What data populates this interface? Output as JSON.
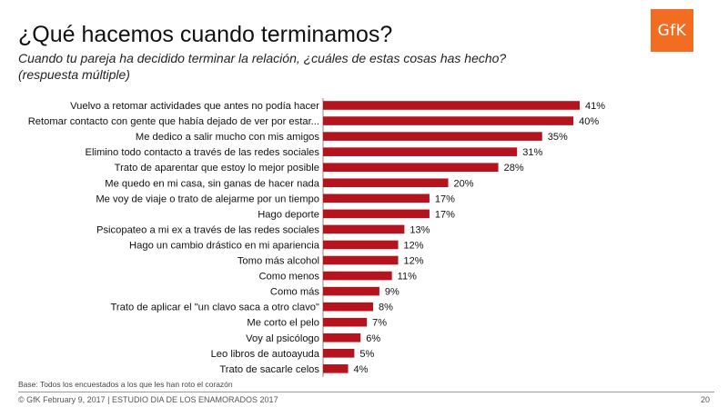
{
  "header": {
    "title": "¿Qué hacemos cuando terminamos?",
    "subtitle_line1": "Cuando tu pareja ha decidido terminar la relación, ¿cuáles de estas cosas has hecho?",
    "subtitle_line2": "(respuesta múltiple)",
    "logo_text": "GfK"
  },
  "footer": {
    "base": "Base: Todos los encuestados a los que les han roto el corazón",
    "copyright": "© GfK February 9, 2017 | ESTUDIO DIA DE LOS ENAMORADOS 2017",
    "page_number": "20"
  },
  "colors": {
    "bar": "#b5141e",
    "logo": "#f26c22"
  },
  "chart_data": {
    "type": "bar",
    "orientation": "horizontal",
    "title": "¿Qué hacemos cuando terminamos?",
    "xlim": [
      0,
      41
    ],
    "grid": false,
    "categories": [
      "Vuelvo a retomar actividades que antes no podía hacer",
      "Retomar contacto con gente que había dejado de ver por estar...",
      "Me dedico a salir mucho con mis amigos",
      "Elimino todo contacto a través de las redes sociales",
      "Trato de aparentar que estoy lo mejor posible",
      "Me quedo en mi casa, sin ganas de hacer nada",
      "Me voy de viaje o trato de alejarme por un tiempo",
      "Hago deporte",
      "Psicopateo a mi ex a través de las redes sociales",
      "Hago un cambio drástico en mi apariencia",
      "Tomo más alcohol",
      "Como menos",
      "Como más",
      "Trato de aplicar el \"un clavo saca a otro clavo\"",
      "Me corto el pelo",
      "Voy al psicólogo",
      "Leo libros de autoayuda",
      "Trato de sacarle celos"
    ],
    "values": [
      41,
      40,
      35,
      31,
      28,
      20,
      17,
      17,
      13,
      12,
      12,
      11,
      9,
      8,
      7,
      6,
      5,
      4
    ],
    "value_labels": [
      "41%",
      "40%",
      "35%",
      "31%",
      "28%",
      "20%",
      "17%",
      "17%",
      "13%",
      "12%",
      "12%",
      "11%",
      "9%",
      "8%",
      "7%",
      "6%",
      "5%",
      "4%"
    ]
  }
}
